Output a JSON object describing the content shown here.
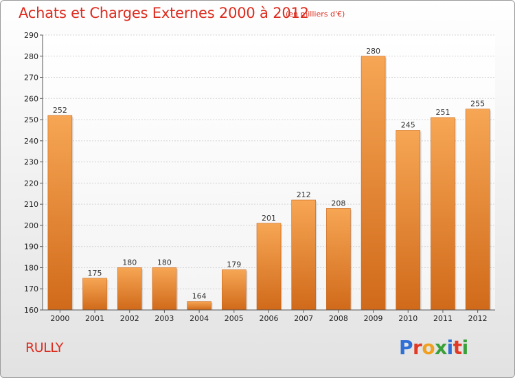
{
  "title": "Achats et Charges Externes 2000 à 2012",
  "subtitle": "(en milliers d'€)",
  "commune": "RULLY",
  "brand": {
    "letters": [
      "P",
      "r",
      "o",
      "x",
      "i",
      "t",
      "i"
    ],
    "colors": [
      "#2f6fd6",
      "#e13a24",
      "#f0a020",
      "#3aa03a",
      "#2f6fd6",
      "#e13a24",
      "#3aa03a"
    ]
  },
  "colors": {
    "bar_top": "#f6a654",
    "bar_bottom": "#d06a1a",
    "title": "#dd2b1e"
  },
  "chart_data": {
    "type": "bar",
    "title": "Achats et Charges Externes 2000 à 2012",
    "subtitle": "(en milliers d'€)",
    "categories": [
      "2000",
      "2001",
      "2002",
      "2003",
      "2004",
      "2005",
      "2006",
      "2007",
      "2008",
      "2009",
      "2010",
      "2011",
      "2012"
    ],
    "values": [
      252,
      175,
      180,
      180,
      164,
      179,
      201,
      212,
      208,
      280,
      245,
      251,
      255
    ],
    "ylim": [
      160,
      290
    ],
    "yticks": [
      160,
      170,
      180,
      190,
      200,
      210,
      220,
      230,
      240,
      250,
      260,
      270,
      280,
      290
    ],
    "grid": true,
    "legend": "none"
  }
}
